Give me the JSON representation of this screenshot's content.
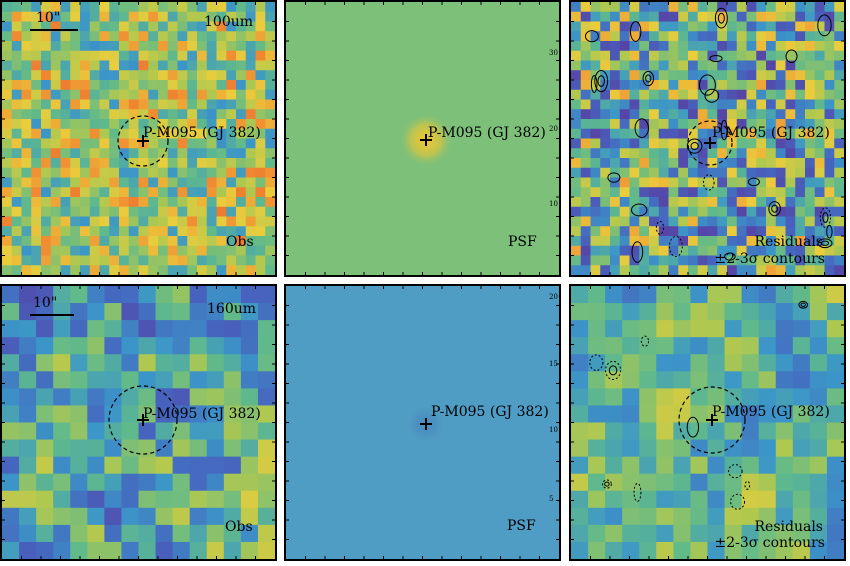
{
  "rows": [
    {
      "band": "100um",
      "scale_label": "10\"",
      "target": "P-M095 (GJ 382)",
      "obs_label": "Obs",
      "psf_label": "PSF",
      "residual_label_line1": "Residuals",
      "residual_label_line2": "±2-3σ contours"
    },
    {
      "band": "160um",
      "scale_label": "10\"",
      "target": "P-M095 (GJ 382)",
      "obs_label": "Obs",
      "psf_label": "PSF",
      "residual_label_line1": "Residuals",
      "residual_label_line2": "±2-3σ contours"
    }
  ],
  "psf_axis_ticks_top": [
    "30",
    "20",
    "10"
  ],
  "psf_axis_ticks_bottom": [
    "20",
    "15",
    "10",
    "5"
  ],
  "colors": {
    "psf_bg_top": "#7cc07a",
    "psf_bg_bottom": "#4f9cc4",
    "psf_core": "#f2c72f",
    "frame": "#000000"
  }
}
